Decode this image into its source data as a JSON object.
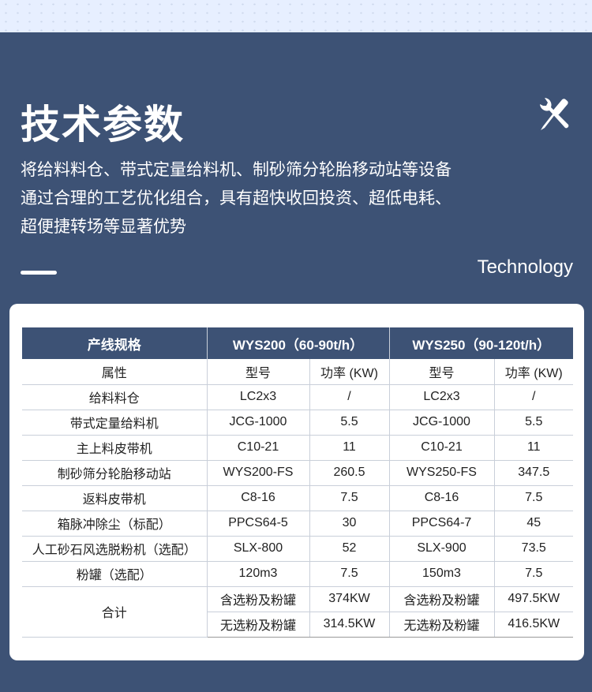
{
  "header": {
    "title": "技术参数",
    "desc_lines": [
      "将给料料仓、带式定量给料机、制砂筛分轮胎移动站等设备",
      "通过合理的工艺优化组合，具有超快收回投资、超低电耗、",
      "超便捷转场等显著优势"
    ],
    "subtitle": "Technology",
    "icon": "wrench-screwdriver-icon"
  },
  "table": {
    "headers": [
      "产线规格",
      "WYS200（60-90t/h）",
      "WYS250（90-120t/h）"
    ],
    "subheaders": [
      "属性",
      "型号",
      "功率 (KW)",
      "型号",
      "功率 (KW)"
    ],
    "rows": [
      [
        "给料料仓",
        "LC2x3",
        "/",
        "LC2x3",
        "/"
      ],
      [
        "带式定量给料机",
        "JCG-1000",
        "5.5",
        "JCG-1000",
        "5.5"
      ],
      [
        "主上料皮带机",
        "C10-21",
        "11",
        "C10-21",
        "11"
      ],
      [
        "制砂筛分轮胎移动站",
        "WYS200-FS",
        "260.5",
        "WYS250-FS",
        "347.5"
      ],
      [
        "返料皮带机",
        "C8-16",
        "7.5",
        "C8-16",
        "7.5"
      ],
      [
        "箱脉冲除尘（标配）",
        "PPCS64-5",
        "30",
        "PPCS64-7",
        "45"
      ],
      [
        "人工砂石风选脱粉机（选配）",
        "SLX-800",
        "52",
        "SLX-900",
        "73.5"
      ],
      [
        "粉罐（选配）",
        "120m3",
        "7.5",
        "150m3",
        "7.5"
      ]
    ],
    "total": {
      "label": "合计",
      "rows": [
        [
          "含选粉及粉罐",
          "374KW",
          "含选粉及粉罐",
          "497.5KW"
        ],
        [
          "无选粉及粉罐",
          "314.5KW",
          "无选粉及粉罐",
          "416.5KW"
        ]
      ]
    }
  }
}
